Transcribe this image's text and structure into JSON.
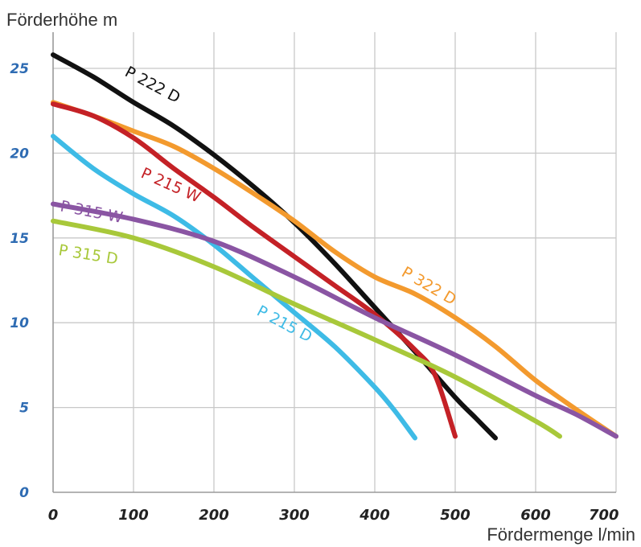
{
  "chart_data": {
    "type": "line",
    "ylabel": "Förderhöhe m",
    "xlabel": "Fördermenge l/min",
    "xlim": [
      0,
      700
    ],
    "ylim": [
      0,
      26
    ],
    "x_ticks": [
      {
        "value": 0,
        "label": "0"
      },
      {
        "value": 100,
        "label": "100"
      },
      {
        "value": 200,
        "label": "200"
      },
      {
        "value": 300,
        "label": "300"
      },
      {
        "value": 400,
        "label": "400"
      },
      {
        "value": 500,
        "label": "500"
      },
      {
        "value": 600,
        "label": "600"
      },
      {
        "value": 700,
        "label": "700"
      }
    ],
    "y_ticks": [
      {
        "value": 0,
        "label": "0"
      },
      {
        "value": 5,
        "label": "5"
      },
      {
        "value": 10,
        "label": "10"
      },
      {
        "value": 15,
        "label": "15"
      },
      {
        "value": 20,
        "label": "20"
      },
      {
        "value": 25,
        "label": "25"
      }
    ],
    "grid": true,
    "legend": "inline labels",
    "series": [
      {
        "name": "P 222 D",
        "color": "#111111",
        "points": [
          [
            0,
            25.8
          ],
          [
            50,
            24.5
          ],
          [
            100,
            23.0
          ],
          [
            150,
            21.6
          ],
          [
            200,
            19.9
          ],
          [
            250,
            18.0
          ],
          [
            300,
            15.9
          ],
          [
            350,
            13.5
          ],
          [
            400,
            10.9
          ],
          [
            450,
            8.3
          ],
          [
            500,
            5.6
          ],
          [
            525,
            4.4
          ],
          [
            550,
            3.2
          ]
        ]
      },
      {
        "name": "P 322 D",
        "color": "#f39a2e",
        "points": [
          [
            0,
            23.0
          ],
          [
            50,
            22.2
          ],
          [
            100,
            21.3
          ],
          [
            150,
            20.4
          ],
          [
            200,
            19.1
          ],
          [
            250,
            17.6
          ],
          [
            300,
            16.0
          ],
          [
            350,
            14.2
          ],
          [
            400,
            12.7
          ],
          [
            450,
            11.7
          ],
          [
            500,
            10.3
          ],
          [
            550,
            8.6
          ],
          [
            600,
            6.6
          ],
          [
            650,
            4.9
          ],
          [
            700,
            3.3
          ]
        ]
      },
      {
        "name": "P 215 W",
        "color": "#c42126",
        "points": [
          [
            0,
            22.9
          ],
          [
            50,
            22.2
          ],
          [
            100,
            20.9
          ],
          [
            150,
            19.1
          ],
          [
            200,
            17.4
          ],
          [
            250,
            15.6
          ],
          [
            300,
            13.9
          ],
          [
            350,
            12.2
          ],
          [
            400,
            10.5
          ],
          [
            450,
            8.4
          ],
          [
            475,
            6.9
          ],
          [
            500,
            3.3
          ]
        ]
      },
      {
        "name": "P 215 D",
        "color": "#3ebbe6",
        "points": [
          [
            0,
            21.0
          ],
          [
            50,
            19.1
          ],
          [
            100,
            17.6
          ],
          [
            150,
            16.3
          ],
          [
            200,
            14.6
          ],
          [
            250,
            12.6
          ],
          [
            300,
            10.6
          ],
          [
            350,
            8.6
          ],
          [
            400,
            6.2
          ],
          [
            425,
            4.8
          ],
          [
            450,
            3.2
          ]
        ]
      },
      {
        "name": "P 315 W",
        "color": "#8a55a3",
        "points": [
          [
            0,
            17.0
          ],
          [
            100,
            16.1
          ],
          [
            200,
            14.8
          ],
          [
            300,
            12.7
          ],
          [
            400,
            10.3
          ],
          [
            500,
            8.1
          ],
          [
            600,
            5.7
          ],
          [
            650,
            4.6
          ],
          [
            700,
            3.3
          ]
        ]
      },
      {
        "name": "P 315 D",
        "color": "#a8c83a",
        "points": [
          [
            0,
            16.0
          ],
          [
            100,
            15.0
          ],
          [
            200,
            13.3
          ],
          [
            300,
            11.1
          ],
          [
            400,
            9.0
          ],
          [
            500,
            6.8
          ],
          [
            600,
            4.2
          ],
          [
            630,
            3.3
          ]
        ]
      }
    ],
    "annotations": [
      {
        "series": "P 222 D",
        "text": "P 222 D",
        "x": 88,
        "y": 24.6,
        "rotate": 28
      },
      {
        "series": "P 322 D",
        "text": "P 322 D",
        "x": 432,
        "y": 12.8,
        "rotate": 30
      },
      {
        "series": "P 215 W",
        "text": "P 215 W",
        "x": 108,
        "y": 18.6,
        "rotate": 24
      },
      {
        "series": "P 215 D",
        "text": "P 215 D",
        "x": 252,
        "y": 10.5,
        "rotate": 28
      },
      {
        "series": "P 315 W",
        "text": "P 315 W",
        "x": 8,
        "y": 16.6,
        "rotate": 11
      },
      {
        "series": "P 315 D",
        "text": "P 315 D",
        "x": 6,
        "y": 14.0,
        "rotate": 9
      }
    ]
  }
}
